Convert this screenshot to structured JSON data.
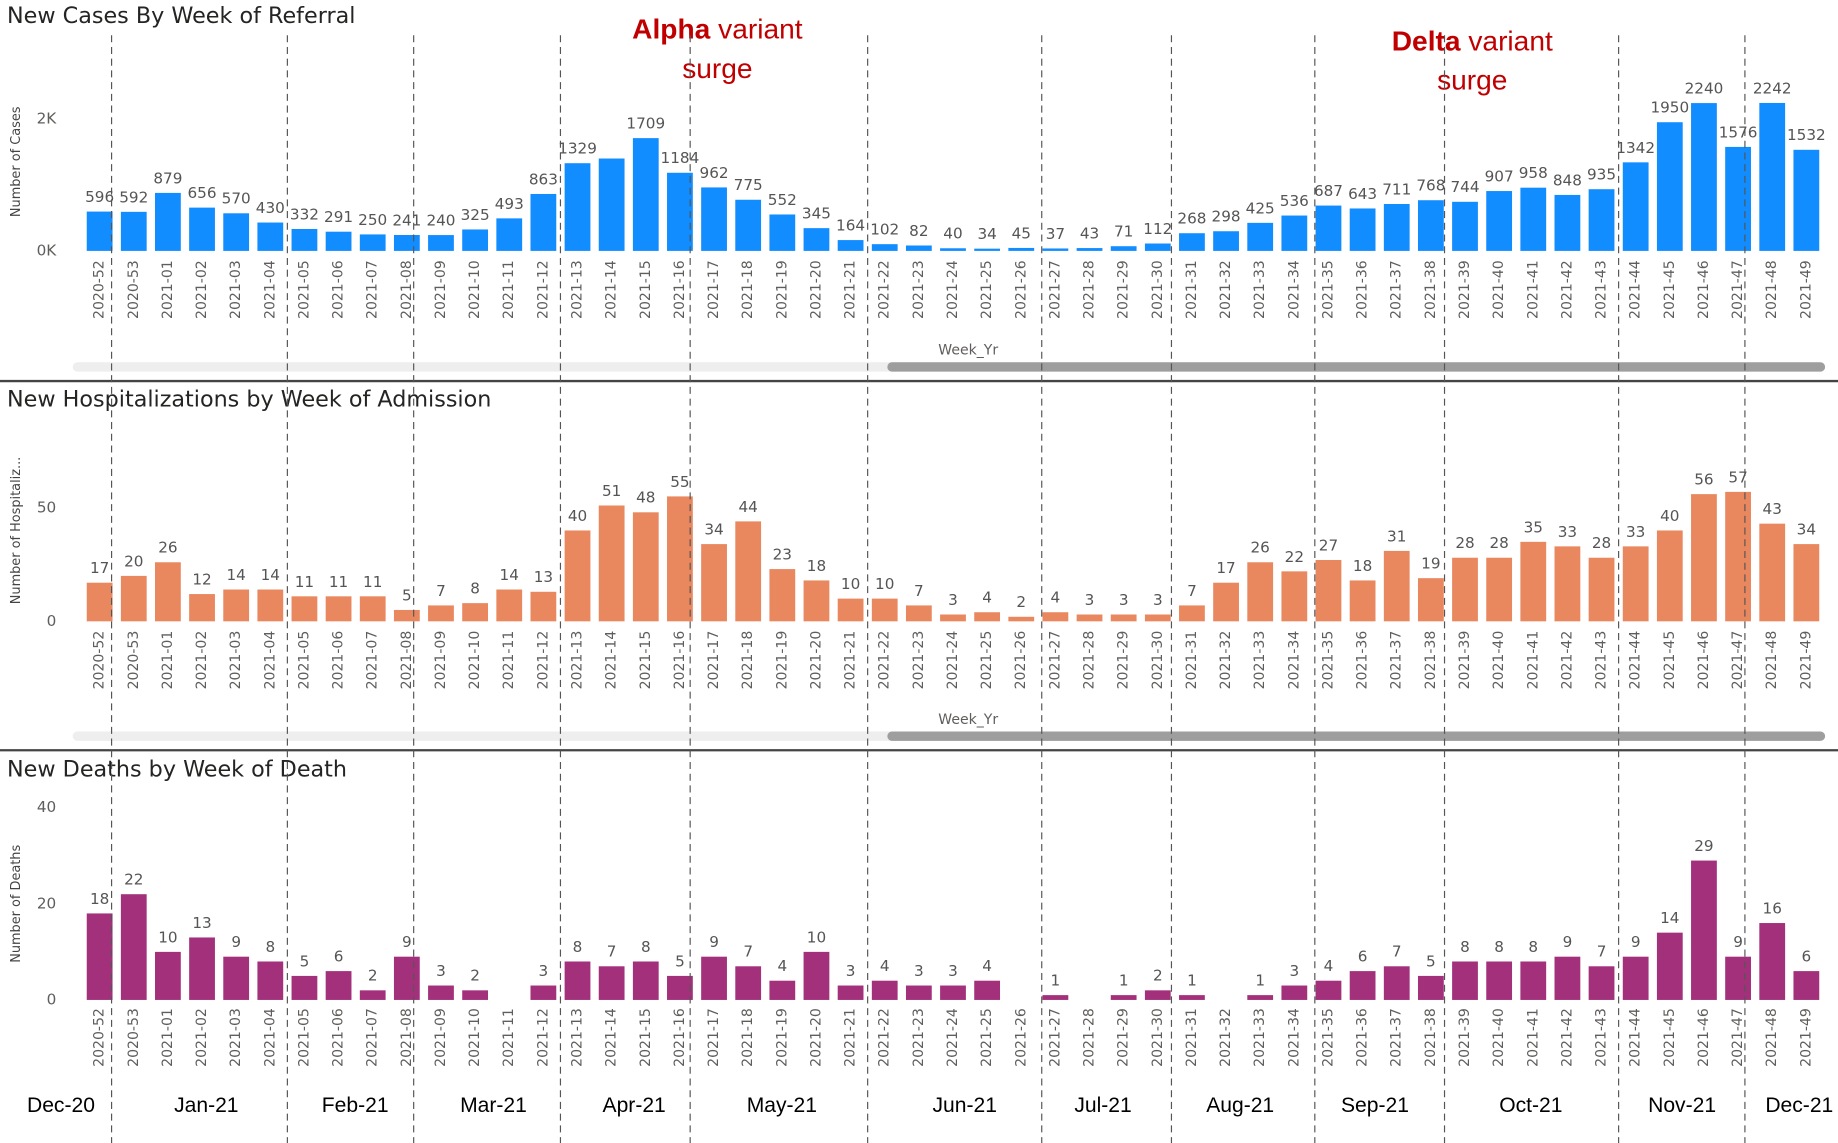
{
  "chart_data": [
    {
      "type": "bar",
      "title": "New Cases By Week of Referral",
      "y_label": "Number of Cases",
      "x_label": "Week_Yr",
      "color": "#118dff",
      "categories": [
        "2020-52",
        "2020-53",
        "2021-01",
        "2021-02",
        "2021-03",
        "2021-04",
        "2021-05",
        "2021-06",
        "2021-07",
        "2021-08",
        "2021-09",
        "2021-10",
        "2021-11",
        "2021-12",
        "2021-13",
        "2021-14",
        "2021-15",
        "2021-16",
        "2021-17",
        "2021-18",
        "2021-19",
        "2021-20",
        "2021-21",
        "2021-22",
        "2021-23",
        "2021-24",
        "2021-25",
        "2021-26",
        "2021-27",
        "2021-28",
        "2021-29",
        "2021-30",
        "2021-31",
        "2021-32",
        "2021-33",
        "2021-34",
        "2021-35",
        "2021-36",
        "2021-37",
        "2021-38",
        "2021-39",
        "2021-40",
        "2021-41",
        "2021-42",
        "2021-43",
        "2021-44",
        "2021-45",
        "2021-46",
        "2021-47",
        "2021-48",
        "2021-49"
      ],
      "values": [
        596,
        592,
        879,
        656,
        570,
        430,
        332,
        291,
        250,
        241,
        240,
        325,
        493,
        863,
        1329,
        1400,
        1709,
        1184,
        962,
        775,
        552,
        345,
        164,
        102,
        82,
        40,
        34,
        45,
        37,
        43,
        71,
        112,
        268,
        298,
        425,
        536,
        687,
        643,
        711,
        768,
        744,
        907,
        958,
        848,
        935,
        1342,
        1950,
        2240,
        1576,
        2242,
        1532
      ],
      "value_labels": [
        "596",
        "592",
        "879",
        "656",
        "570",
        "430",
        "332",
        "291",
        "250",
        "241",
        "240",
        "325",
        "493",
        "863",
        "1329",
        null,
        "1709",
        "1184",
        "962",
        "775",
        "552",
        "345",
        "164",
        "102",
        "82",
        "40",
        "34",
        "45",
        "37",
        "43",
        "71",
        "112",
        "268",
        "298",
        "425",
        "536",
        "687",
        "643",
        "711",
        "768",
        "744",
        "907",
        "958",
        "848",
        "935",
        "1342",
        "1950",
        "2240",
        "1576",
        "2242",
        "1532"
      ],
      "ylim": [
        0,
        2700
      ],
      "yticks": [
        {
          "value": 0,
          "label": "0K"
        },
        {
          "value": 2000,
          "label": "2K"
        }
      ],
      "grid": false,
      "annotations": [
        {
          "bold": "Alpha",
          "line1": "variant",
          "line2": "surge"
        },
        {
          "bold": "Delta",
          "line1": "variant",
          "line2": "surge"
        }
      ]
    },
    {
      "type": "bar",
      "title": "New Hospitalizations by Week of Admission",
      "y_label": "Number of Hospitaliz...",
      "x_label": "Week_Yr",
      "color": "#e9875f",
      "categories": [
        "2020-52",
        "2020-53",
        "2021-01",
        "2021-02",
        "2021-03",
        "2021-04",
        "2021-05",
        "2021-06",
        "2021-07",
        "2021-08",
        "2021-09",
        "2021-10",
        "2021-11",
        "2021-12",
        "2021-13",
        "2021-14",
        "2021-15",
        "2021-16",
        "2021-17",
        "2021-18",
        "2021-19",
        "2021-20",
        "2021-21",
        "2021-22",
        "2021-23",
        "2021-24",
        "2021-25",
        "2021-26",
        "2021-27",
        "2021-28",
        "2021-29",
        "2021-30",
        "2021-31",
        "2021-32",
        "2021-33",
        "2021-34",
        "2021-35",
        "2021-36",
        "2021-37",
        "2021-38",
        "2021-39",
        "2021-40",
        "2021-41",
        "2021-42",
        "2021-43",
        "2021-44",
        "2021-45",
        "2021-46",
        "2021-47",
        "2021-48",
        "2021-49"
      ],
      "values": [
        17,
        20,
        26,
        12,
        14,
        14,
        11,
        11,
        11,
        5,
        7,
        8,
        14,
        13,
        40,
        51,
        48,
        55,
        34,
        44,
        23,
        18,
        10,
        10,
        7,
        3,
        4,
        2,
        4,
        3,
        3,
        3,
        7,
        17,
        26,
        22,
        27,
        18,
        31,
        19,
        28,
        28,
        35,
        33,
        28,
        33,
        40,
        56,
        57,
        43,
        34
      ],
      "ylim": [
        0,
        80
      ],
      "yticks": [
        0,
        50
      ],
      "grid": false
    },
    {
      "type": "bar",
      "title": "New Deaths by Week of Death",
      "y_label": "Number of Deaths",
      "color": "#a3307b",
      "categories": [
        "2020-52",
        "2020-53",
        "2021-01",
        "2021-02",
        "2021-03",
        "2021-04",
        "2021-05",
        "2021-06",
        "2021-07",
        "2021-08",
        "2021-09",
        "2021-10",
        "2021-11",
        "2021-12",
        "2021-13",
        "2021-14",
        "2021-15",
        "2021-16",
        "2021-17",
        "2021-18",
        "2021-19",
        "2021-20",
        "2021-21",
        "2021-22",
        "2021-23",
        "2021-24",
        "2021-25",
        "2021-26",
        "2021-27",
        "2021-28",
        "2021-29",
        "2021-30",
        "2021-31",
        "2021-32",
        "2021-33",
        "2021-34",
        "2021-35",
        "2021-36",
        "2021-37",
        "2021-38",
        "2021-39",
        "2021-40",
        "2021-41",
        "2021-42",
        "2021-43",
        "2021-44",
        "2021-45",
        "2021-46",
        "2021-47",
        "2021-48",
        "2021-49"
      ],
      "values": [
        18,
        22,
        10,
        13,
        9,
        8,
        5,
        6,
        2,
        9,
        3,
        2,
        0,
        3,
        8,
        7,
        8,
        5,
        9,
        7,
        4,
        10,
        3,
        4,
        3,
        3,
        4,
        0,
        1,
        0,
        1,
        2,
        1,
        0,
        1,
        3,
        4,
        6,
        7,
        5,
        8,
        8,
        8,
        9,
        7,
        9,
        14,
        29,
        9,
        16,
        6
      ],
      "value_labels": [
        "18",
        "22",
        "10",
        "13",
        "9",
        "8",
        "5",
        "6",
        "2",
        "9",
        "3",
        "2",
        null,
        "3",
        "8",
        "7",
        "8",
        "5",
        "9",
        "7",
        "4",
        "10",
        "3",
        "4",
        "3",
        "3",
        "4",
        null,
        "1",
        null,
        "1",
        "2",
        "1",
        null,
        "1",
        "3",
        "4",
        "6",
        "7",
        "5",
        "8",
        "8",
        "8",
        "9",
        "7",
        "9",
        "14",
        "29",
        "9",
        "16",
        "6"
      ],
      "ylim": [
        0,
        40
      ],
      "yticks": [
        0,
        20,
        40
      ],
      "grid": false
    }
  ],
  "months": [
    "Dec-20",
    "Jan-21",
    "Feb-21",
    "Mar-21",
    "Apr-21",
    "May-21",
    "Jun-21",
    "Jul-21",
    "Aug-21",
    "Sep-21",
    "Oct-21",
    "Nov-21",
    "Dec-21"
  ]
}
